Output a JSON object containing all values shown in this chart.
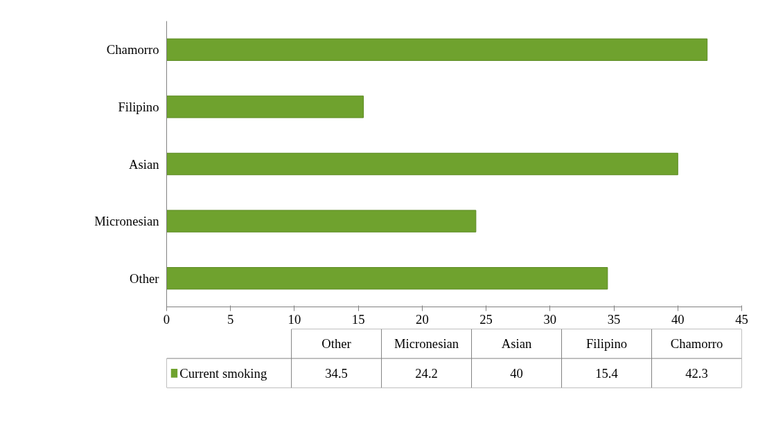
{
  "chart_data": [
    {
      "type": "bar",
      "orientation": "horizontal",
      "categories": [
        "Chamorro",
        "Filipino",
        "Asian",
        "Micronesian",
        "Other"
      ],
      "series": [
        {
          "color": "#6fa22e",
          "values": [
            42.3,
            15.4,
            40,
            24.2,
            34.5
          ]
        }
      ],
      "xlim": [
        0,
        45
      ],
      "xticks": [
        0,
        5,
        10,
        15,
        20,
        25,
        30,
        35,
        40,
        45
      ],
      "grid": false
    },
    {
      "type": "other",
      "categories": [
        "Other",
        "Micronesian",
        "Asian",
        "Filipino",
        "Chamorro"
      ],
      "series": [
        {
          "name": "Current smoking",
          "color": "#6fa22e",
          "values": [
            34.5,
            24.2,
            40,
            15.4,
            42.3
          ]
        }
      ],
      "data_labels": true,
      "legend": "bottom"
    }
  ]
}
